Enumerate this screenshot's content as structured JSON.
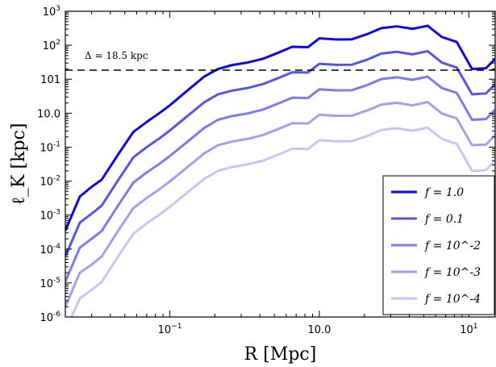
{
  "chart_data": {
    "type": "line",
    "xlabel": "R [Mpc]",
    "ylabel": "ℓ_K [kpc]",
    "xscale": "log",
    "yscale": "log",
    "xlim": [
      0.02,
      15
    ],
    "ylim": [
      1e-06,
      1000
    ],
    "x_ticks": [
      {
        "value": 0.1,
        "base": "10",
        "exp": "−1"
      },
      {
        "value": 1,
        "label": "10.0"
      },
      {
        "value": 10,
        "base": "10",
        "exp": "1"
      }
    ],
    "y_ticks": [
      {
        "value": 1e-06,
        "base": "10",
        "exp": "-6"
      },
      {
        "value": 1e-05,
        "base": "10",
        "exp": "-5"
      },
      {
        "value": 0.0001,
        "base": "10",
        "exp": "-4"
      },
      {
        "value": 0.001,
        "base": "10",
        "exp": "-3"
      },
      {
        "value": 0.01,
        "base": "10",
        "exp": "-2"
      },
      {
        "value": 0.1,
        "base": "10",
        "exp": "-1"
      },
      {
        "value": 1,
        "label": "10.0"
      },
      {
        "value": 10,
        "label": "101"
      },
      {
        "value": 100,
        "base": "10",
        "exp": "2"
      },
      {
        "value": 1000,
        "base": "10",
        "exp": "3"
      }
    ],
    "hline": {
      "y": 18.5,
      "label": "Δ = 18.5 kpc",
      "style": "dashed",
      "color": "#000000"
    },
    "legend": "lower-right",
    "x": [
      0.02,
      0.025,
      0.03,
      0.035,
      0.045,
      0.057,
      0.07,
      0.085,
      0.1,
      0.13,
      0.17,
      0.21,
      0.26,
      0.33,
      0.42,
      0.53,
      0.66,
      0.84,
      1.0,
      1.3,
      1.65,
      2.1,
      2.6,
      3.3,
      4.2,
      5.3,
      6.6,
      8.3,
      10.5,
      13.0,
      15.0
    ],
    "series": [
      {
        "name": "f = 1.0",
        "color": "#0a0adc",
        "values": [
          0.00035,
          0.0035,
          0.0068,
          0.011,
          0.06,
          0.28,
          0.55,
          1.0,
          1.7,
          4.5,
          12,
          20,
          26,
          31,
          40,
          60,
          90,
          88,
          160,
          148,
          150,
          215,
          320,
          360,
          305,
          375,
          175,
          125,
          20,
          21,
          40
        ]
      },
      {
        "name": "f = 0.1",
        "color": "#5555e6",
        "values": [
          6e-05,
          0.0006,
          0.0011,
          0.0019,
          0.0105,
          0.05,
          0.1,
          0.18,
          0.31,
          0.8,
          2.1,
          3.6,
          4.6,
          5.5,
          7.2,
          10.8,
          16,
          15.8,
          28.5,
          26.5,
          26.8,
          38,
          57,
          64,
          54,
          67,
          31,
          22,
          3.6,
          3.8,
          7.1
        ]
      },
      {
        "name": "f = 10^-2",
        "color": "#7c7cec",
        "values": [
          1.1e-05,
          0.00011,
          0.0002,
          0.00034,
          0.0019,
          0.009,
          0.018,
          0.032,
          0.055,
          0.14,
          0.37,
          0.64,
          0.82,
          0.98,
          1.28,
          1.92,
          2.85,
          2.8,
          5.05,
          4.7,
          4.75,
          6.8,
          10.1,
          11.4,
          9.6,
          11.9,
          5.5,
          3.95,
          0.64,
          0.67,
          1.26
        ]
      },
      {
        "name": "f = 10^-3",
        "color": "#a0a0f0",
        "values": [
          2e-06,
          2e-05,
          3.5e-05,
          6e-05,
          0.00034,
          0.0016,
          0.0032,
          0.0057,
          0.0098,
          0.025,
          0.066,
          0.114,
          0.146,
          0.174,
          0.227,
          0.34,
          0.506,
          0.497,
          0.9,
          0.835,
          0.845,
          1.21,
          1.8,
          2.03,
          1.7,
          2.12,
          0.98,
          0.7,
          0.114,
          0.119,
          0.225
        ]
      },
      {
        "name": "f = 10^-4",
        "color": "#c6c6f6",
        "values": [
          4e-07,
          3.5e-06,
          6.3e-06,
          1.06e-05,
          6e-05,
          0.00028,
          0.00057,
          0.00102,
          0.00175,
          0.0045,
          0.0117,
          0.02,
          0.026,
          0.031,
          0.04,
          0.06,
          0.09,
          0.088,
          0.16,
          0.148,
          0.15,
          0.215,
          0.32,
          0.36,
          0.305,
          0.375,
          0.175,
          0.125,
          0.02,
          0.021,
          0.04
        ]
      }
    ]
  }
}
